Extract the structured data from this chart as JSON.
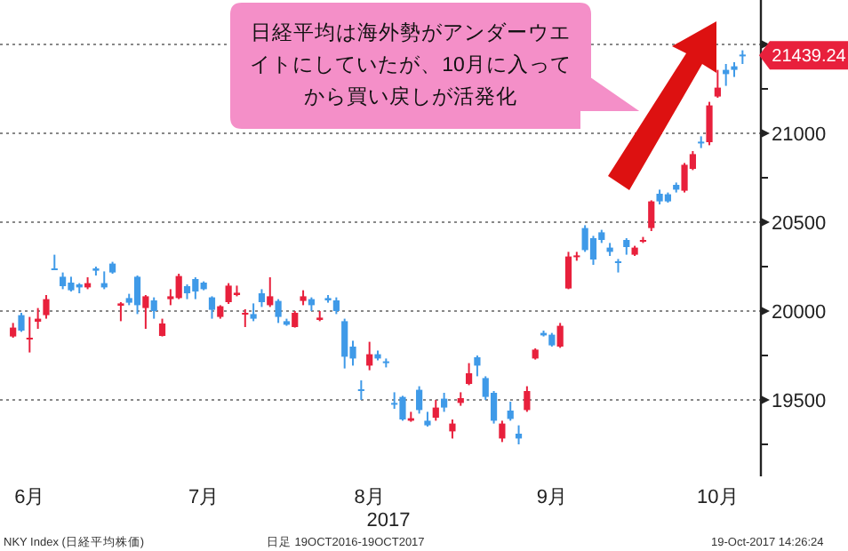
{
  "chart_data": {
    "type": "candlestick",
    "categories": [
      null,
      null,
      "6月",
      null,
      null,
      null,
      null,
      null,
      null,
      null,
      null,
      null,
      null,
      null,
      null,
      null,
      null,
      null,
      null,
      null,
      null,
      null,
      null,
      "7月",
      null,
      null,
      null,
      null,
      null,
      null,
      null,
      null,
      null,
      null,
      null,
      null,
      null,
      null,
      null,
      null,
      null,
      null,
      null,
      "8月",
      null,
      null,
      null,
      null,
      null,
      null,
      null,
      null,
      null,
      null,
      null,
      null,
      null,
      null,
      null,
      null,
      null,
      null,
      null,
      null,
      null,
      "9月",
      null,
      null,
      null,
      null,
      null,
      null,
      null,
      null,
      null,
      null,
      null,
      null,
      null,
      null,
      null,
      null,
      null,
      null,
      null,
      "10月",
      null,
      null,
      null
    ],
    "ohlc": [
      [
        19857,
        19933,
        19850,
        19907
      ],
      [
        19977,
        19990,
        19883,
        19890
      ],
      [
        19840,
        19967,
        19767,
        19850
      ],
      [
        19940,
        20017,
        19900,
        19957
      ],
      [
        19977,
        20090,
        19957,
        20067
      ],
      [
        20240,
        20317,
        20233,
        20235
      ],
      [
        20193,
        20217,
        20123,
        20140
      ],
      [
        20160,
        20193,
        20110,
        20117
      ],
      [
        20150,
        20157,
        20100,
        20133
      ],
      [
        20133,
        20190,
        20123,
        20157
      ],
      [
        20240,
        20250,
        20200,
        20227
      ],
      [
        20157,
        20223,
        20123,
        20133
      ],
      [
        20267,
        20277,
        20210,
        20217
      ],
      [
        20030,
        20050,
        19943,
        20043
      ],
      [
        20073,
        20097,
        20033,
        20047
      ],
      [
        20193,
        20200,
        19983,
        20033
      ],
      [
        20017,
        20090,
        19900,
        20083
      ],
      [
        20060,
        20077,
        19957,
        20000
      ],
      [
        19860,
        19957,
        19857,
        19930
      ],
      [
        20067,
        20123,
        20033,
        20083
      ],
      [
        20073,
        20210,
        20067,
        20197
      ],
      [
        20140,
        20150,
        20067,
        20100
      ],
      [
        20180,
        20190,
        20067,
        20110
      ],
      [
        20160,
        20167,
        20117,
        20123
      ],
      [
        20077,
        20083,
        19957,
        20007
      ],
      [
        19967,
        20033,
        19957,
        20027
      ],
      [
        20050,
        20157,
        20040,
        20143
      ],
      [
        20090,
        20143,
        20083,
        20103
      ],
      [
        19983,
        20010,
        19910,
        19990
      ],
      [
        19983,
        20043,
        19943,
        19957
      ],
      [
        20100,
        20123,
        20023,
        20050
      ],
      [
        20033,
        20190,
        20023,
        20083
      ],
      [
        20057,
        20067,
        19933,
        19967
      ],
      [
        19943,
        19957,
        19917,
        19923
      ],
      [
        19910,
        20000,
        19907,
        19990
      ],
      [
        20057,
        20117,
        20033,
        20083
      ],
      [
        20067,
        20077,
        20000,
        20033
      ],
      [
        19950,
        20000,
        19943,
        19963
      ],
      [
        20073,
        20090,
        20047,
        20060
      ],
      [
        20060,
        20077,
        19983,
        20000
      ],
      [
        19943,
        19957,
        19677,
        19743
      ],
      [
        19800,
        19833,
        19693,
        19733
      ],
      [
        19560,
        19610,
        19500,
        19553
      ],
      [
        19693,
        19827,
        19667,
        19757
      ],
      [
        19757,
        19777,
        19723,
        19733
      ],
      [
        19717,
        19733,
        19683,
        19707
      ],
      [
        19483,
        19543,
        19450,
        19477
      ],
      [
        19517,
        19523,
        19383,
        19390
      ],
      [
        19383,
        19433,
        19377,
        19397
      ],
      [
        19557,
        19577,
        19423,
        19443
      ],
      [
        19383,
        19433,
        19350,
        19357
      ],
      [
        19400,
        19500,
        19383,
        19457
      ],
      [
        19507,
        19540,
        19433,
        19457
      ],
      [
        19323,
        19390,
        19283,
        19367
      ],
      [
        19483,
        19543,
        19467,
        19510
      ],
      [
        19590,
        19707,
        19583,
        19650
      ],
      [
        19740,
        19750,
        19633,
        19693
      ],
      [
        19623,
        19633,
        19500,
        19517
      ],
      [
        19540,
        19550,
        19367,
        19383
      ],
      [
        19283,
        19383,
        19263,
        19367
      ],
      [
        19440,
        19490,
        19383,
        19393
      ],
      [
        19310,
        19357,
        19250,
        19283
      ],
      [
        19443,
        19577,
        19433,
        19550
      ],
      [
        19733,
        19790,
        19727,
        19783
      ],
      [
        19877,
        19890,
        19857,
        19863
      ],
      [
        19867,
        19877,
        19800,
        19807
      ],
      [
        19800,
        19933,
        19793,
        19917
      ],
      [
        20127,
        20333,
        20123,
        20307
      ],
      [
        20310,
        20333,
        20283,
        20313
      ],
      [
        20467,
        20483,
        20333,
        20343
      ],
      [
        20410,
        20423,
        20260,
        20290
      ],
      [
        20443,
        20457,
        20383,
        20400
      ],
      [
        20357,
        20383,
        20310,
        20333
      ],
      [
        20280,
        20293,
        20217,
        20275
      ],
      [
        20400,
        20410,
        20317,
        20360
      ],
      [
        20317,
        20367,
        20310,
        20357
      ],
      [
        20397,
        20417,
        20383,
        20400
      ],
      [
        20467,
        20623,
        20450,
        20617
      ],
      [
        20660,
        20683,
        20600,
        20617
      ],
      [
        20657,
        20667,
        20610,
        20617
      ],
      [
        20710,
        20723,
        20667,
        20683
      ],
      [
        20677,
        20833,
        20667,
        20823
      ],
      [
        20800,
        20900,
        20793,
        20883
      ],
      [
        20953,
        20983,
        20917,
        20947
      ],
      [
        20950,
        21177,
        20933,
        21157
      ],
      [
        21207,
        21357,
        21200,
        21257
      ],
      [
        21357,
        21390,
        21267,
        21333
      ],
      [
        21377,
        21400,
        21317,
        21357
      ],
      [
        21443,
        21467,
        21390,
        21439.24
      ]
    ],
    "colors": [
      "#e8203c",
      "#3f9ae8",
      "#e8203c",
      "#e8203c",
      "#e8203c",
      "#3f9ae8",
      "#3f9ae8",
      "#3f9ae8",
      "#3f9ae8",
      "#e8203c",
      "#3f9ae8",
      "#3f9ae8",
      "#3f9ae8",
      "#e8203c",
      "#3f9ae8",
      "#3f9ae8",
      "#e8203c",
      "#3f9ae8",
      "#e8203c",
      "#e8203c",
      "#e8203c",
      "#3f9ae8",
      "#3f9ae8",
      "#3f9ae8",
      "#3f9ae8",
      "#e8203c",
      "#e8203c",
      "#e8203c",
      "#e8203c",
      "#3f9ae8",
      "#3f9ae8",
      "#e8203c",
      "#3f9ae8",
      "#3f9ae8",
      "#e8203c",
      "#e8203c",
      "#3f9ae8",
      "#e8203c",
      "#3f9ae8",
      "#3f9ae8",
      "#3f9ae8",
      "#3f9ae8",
      "#3f9ae8",
      "#e8203c",
      "#3f9ae8",
      "#3f9ae8",
      "#3f9ae8",
      "#3f9ae8",
      "#e8203c",
      "#3f9ae8",
      "#3f9ae8",
      "#e8203c",
      "#3f9ae8",
      "#e8203c",
      "#e8203c",
      "#e8203c",
      "#3f9ae8",
      "#3f9ae8",
      "#3f9ae8",
      "#e8203c",
      "#3f9ae8",
      "#3f9ae8",
      "#e8203c",
      "#e8203c",
      "#3f9ae8",
      "#3f9ae8",
      "#e8203c",
      "#e8203c",
      "#e8203c",
      "#3f9ae8",
      "#3f9ae8",
      "#3f9ae8",
      "#3f9ae8",
      "#3f9ae8",
      "#3f9ae8",
      "#e8203c",
      "#e8203c",
      "#e8203c",
      "#3f9ae8",
      "#3f9ae8",
      "#3f9ae8",
      "#e8203c",
      "#e8203c",
      "#3f9ae8",
      "#e8203c",
      "#e8203c",
      "#3f9ae8",
      "#3f9ae8",
      "#3f9ae8"
    ],
    "xlabel": "2017",
    "ylim": [
      19070,
      21750
    ],
    "yticks": [
      {
        "value": 19250,
        "label": null
      },
      19500,
      {
        "value": 19750,
        "label": null
      },
      20000,
      {
        "value": 20250,
        "label": null
      },
      20500,
      {
        "value": 20750,
        "label": null
      },
      21000,
      {
        "value": 21250,
        "label": null
      },
      {
        "value": 21500,
        "label": null
      }
    ],
    "grid": "y",
    "annotations": [
      "日経平均は海外勢がアンダーウエイトにしていたが、10月に入ってから買い戻しが活発化",
      "21439.24",
      "NKY Index (日経平均株価)",
      "日足 19OCT2016-19OCT2017",
      "19-Oct-2017 14:26:24"
    ]
  }
}
